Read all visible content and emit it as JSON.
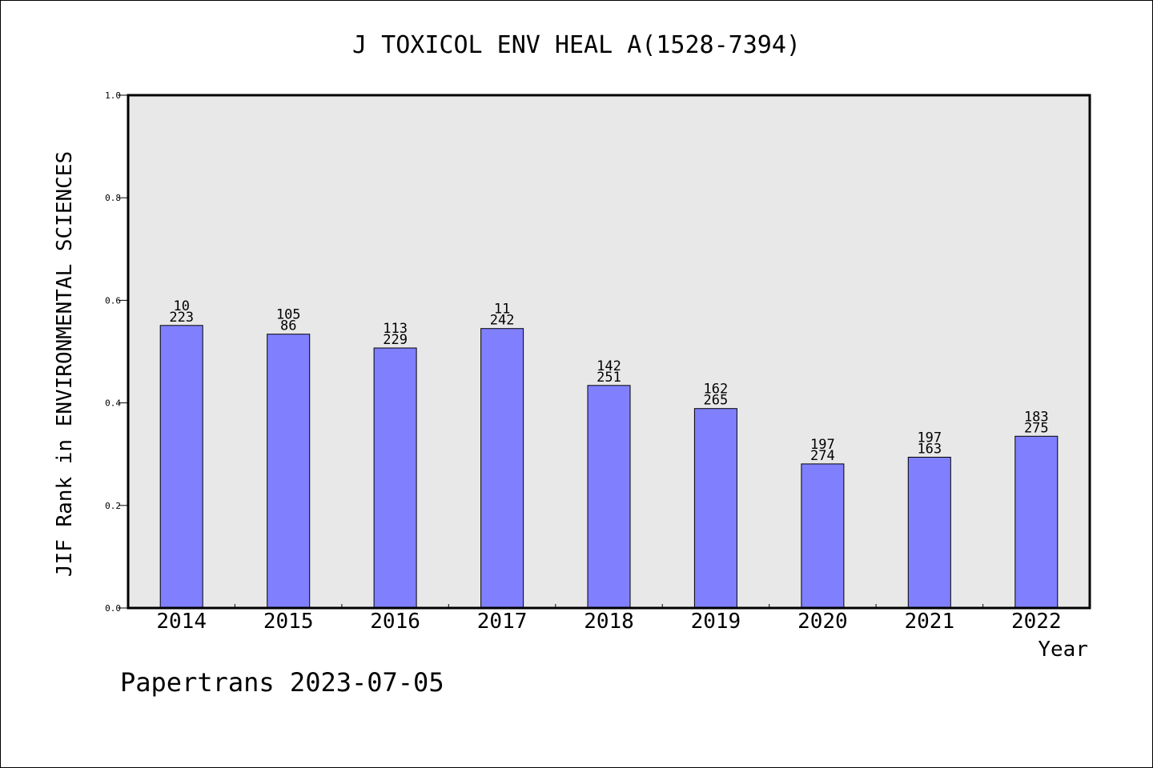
{
  "chart_data": {
    "type": "bar",
    "title": "J TOXICOL ENV HEAL A(1528-7394)",
    "ylabel": "JIF Rank in ENVIRONMENTAL SCIENCES",
    "xlabel": "Year",
    "ylim": [
      0,
      1.0
    ],
    "yticks": [
      "0.0",
      "0.2",
      "0.4",
      "0.6",
      "0.8",
      "1.0"
    ],
    "categories": [
      "2014",
      "2015",
      "2016",
      "2017",
      "2018",
      "2019",
      "2020",
      "2021",
      "2022"
    ],
    "values": [
      0.551,
      0.534,
      0.507,
      0.545,
      0.434,
      0.389,
      0.281,
      0.294,
      0.335
    ],
    "labels_top": [
      "10",
      "105",
      "113",
      "11",
      "142",
      "162",
      "197",
      "197",
      "183"
    ],
    "labels_bottom": [
      "223",
      "86",
      "229",
      "242",
      "251",
      "265",
      "274",
      "163",
      "275"
    ],
    "grid": false,
    "bar_color": "#8080ff",
    "plot_bg": "#e8e8e8"
  },
  "footer": {
    "text": "Papertrans 2023-07-05"
  }
}
